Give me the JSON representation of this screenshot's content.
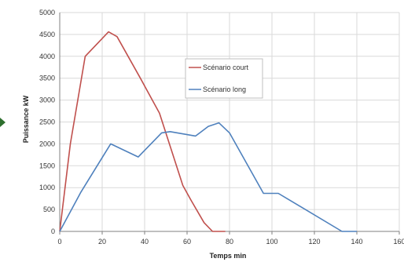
{
  "chart_data": {
    "type": "line",
    "title": "",
    "xlabel": "Temps min",
    "ylabel": "Puissance kW",
    "xlim": [
      0,
      160
    ],
    "ylim": [
      0,
      5000
    ],
    "xticks": [
      0,
      20,
      40,
      60,
      80,
      100,
      120,
      140,
      160
    ],
    "yticks": [
      0,
      500,
      1000,
      1500,
      2000,
      2500,
      3000,
      3500,
      4000,
      4500,
      5000
    ],
    "grid": true,
    "legend_position": "center",
    "series": [
      {
        "name": "Scénario court",
        "color": "#c0504d",
        "x": [
          0,
          5,
          12,
          23,
          27,
          38,
          47,
          58,
          62,
          68,
          72,
          78
        ],
        "y": [
          0,
          2000,
          4000,
          4560,
          4450,
          3500,
          2700,
          1050,
          700,
          200,
          0,
          0
        ]
      },
      {
        "name": "Scénario long",
        "color": "#4f81bd",
        "x": [
          0,
          10,
          24,
          37,
          48,
          52,
          64,
          70,
          75,
          80,
          96,
          103,
          133,
          140
        ],
        "y": [
          0,
          900,
          2000,
          1700,
          2250,
          2280,
          2180,
          2400,
          2480,
          2250,
          870,
          870,
          0,
          0
        ]
      }
    ]
  }
}
